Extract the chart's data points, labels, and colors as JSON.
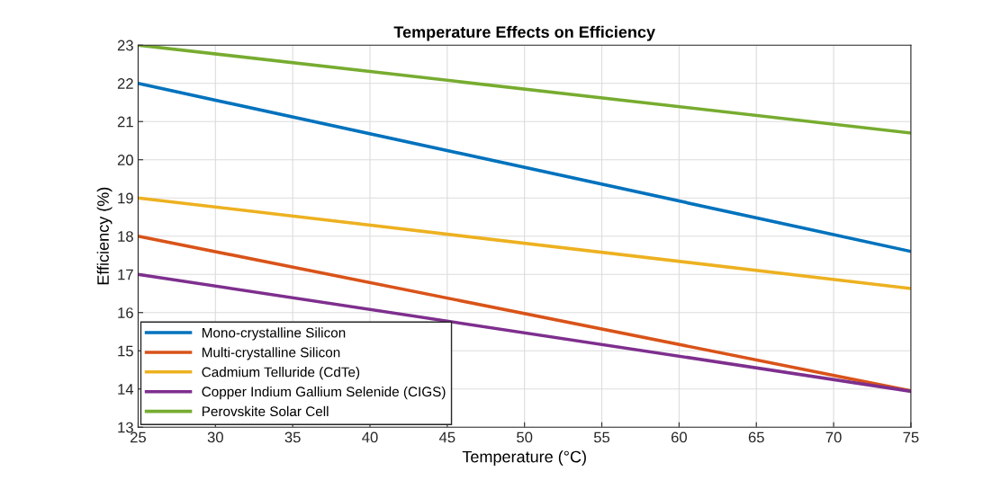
{
  "chart_data": {
    "type": "line",
    "title": "Temperature Effects on Efficiency",
    "xlabel": "Temperature (°C)",
    "ylabel": "Efficiency (%)",
    "x": [
      25,
      75
    ],
    "series": [
      {
        "name": "Mono-crystalline Silicon",
        "color": "#0072bd",
        "values": [
          22,
          17.6
        ]
      },
      {
        "name": "Multi-crystalline Silicon",
        "color": "#d95319",
        "values": [
          18,
          13.95
        ]
      },
      {
        "name": "Cadmium Telluride (CdTe)",
        "color": "#edb120",
        "values": [
          19,
          16.63
        ]
      },
      {
        "name": "Copper Indium Gallium Selenide (CIGS)",
        "color": "#7e2f8e",
        "values": [
          17,
          13.94
        ]
      },
      {
        "name": "Perovskite Solar Cell",
        "color": "#77ac30",
        "values": [
          23,
          20.7
        ]
      }
    ],
    "xlim": [
      25,
      75
    ],
    "xticks": [
      25,
      30,
      35,
      40,
      45,
      50,
      55,
      60,
      65,
      70,
      75
    ],
    "ylim": [
      13,
      23
    ],
    "yticks": [
      13,
      14,
      15,
      16,
      17,
      18,
      19,
      20,
      21,
      22,
      23
    ],
    "grid": true,
    "legend": "bottom left",
    "marker": "none",
    "line_style": "solid"
  }
}
